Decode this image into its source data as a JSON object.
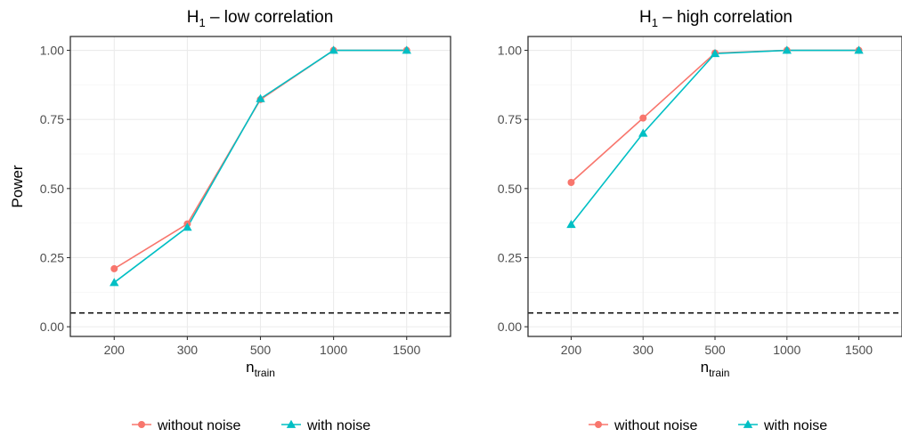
{
  "colors": {
    "without_noise": "#F8766D",
    "with_noise": "#00BFC4",
    "grid_major": "#EBEBEB",
    "grid_minor": "#F5F5F5",
    "axis": "#333333",
    "reference_line": "#000000"
  },
  "chart_data": [
    {
      "type": "line",
      "title_main": "H",
      "title_sub": "1",
      "title_rest": " – low correlation",
      "xlabel_main": "n",
      "xlabel_sub": "train",
      "ylabel": "Power",
      "categories": [
        "200",
        "300",
        "500",
        "1000",
        "1500"
      ],
      "ylim": [
        -0.035,
        1.05
      ],
      "yticks": [
        0.0,
        0.25,
        0.5,
        0.75,
        1.0
      ],
      "ytick_labels": [
        "0.00",
        "0.25",
        "0.50",
        "0.75",
        "1.00"
      ],
      "reference_y": 0.05,
      "grid": true,
      "series": [
        {
          "name": "without noise",
          "marker": "circle",
          "values": [
            0.21,
            0.372,
            0.822,
            1.0,
            1.0
          ]
        },
        {
          "name": "with noise",
          "marker": "triangle",
          "values": [
            0.16,
            0.36,
            0.825,
            1.0,
            1.0
          ]
        }
      ],
      "legend": {
        "position": "bottom",
        "entries": [
          "without noise",
          "with noise"
        ]
      }
    },
    {
      "type": "line",
      "title_main": "H",
      "title_sub": "1",
      "title_rest": " – high correlation",
      "xlabel_main": "n",
      "xlabel_sub": "train",
      "ylabel": "",
      "categories": [
        "200",
        "300",
        "500",
        "1000",
        "1500"
      ],
      "ylim": [
        -0.035,
        1.05
      ],
      "yticks": [
        0.0,
        0.25,
        0.5,
        0.75,
        1.0
      ],
      "ytick_labels": [
        "0.00",
        "0.25",
        "0.50",
        "0.75",
        "1.00"
      ],
      "reference_y": 0.05,
      "grid": true,
      "series": [
        {
          "name": "without noise",
          "marker": "circle",
          "values": [
            0.522,
            0.755,
            0.99,
            1.0,
            1.0
          ]
        },
        {
          "name": "with noise",
          "marker": "triangle",
          "values": [
            0.37,
            0.7,
            0.988,
            1.0,
            1.0
          ]
        }
      ],
      "legend": {
        "position": "bottom",
        "entries": [
          "without noise",
          "with noise"
        ]
      }
    }
  ]
}
